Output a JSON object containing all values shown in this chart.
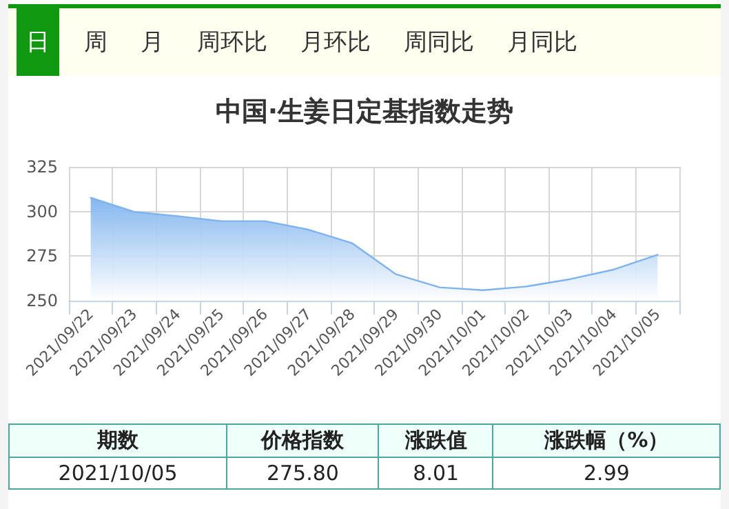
{
  "chart_data": {
    "type": "area",
    "title": "中国·生姜日定基指数走势",
    "categories": [
      "2021/09/22",
      "2021/09/23",
      "2021/09/24",
      "2021/09/25",
      "2021/09/26",
      "2021/09/27",
      "2021/09/28",
      "2021/09/29",
      "2021/09/30",
      "2021/10/01",
      "2021/10/02",
      "2021/10/03",
      "2021/10/04",
      "2021/10/05"
    ],
    "series": [
      {
        "color": "#7eb3ee",
        "values": [
          307.7,
          299.8,
          297.4,
          294.6,
          294.6,
          289.8,
          282.2,
          264.8,
          257.5,
          255.9,
          258.0,
          262.1,
          267.5,
          275.8
        ]
      }
    ],
    "ylim": [
      250,
      325
    ],
    "yticks": [
      250,
      275,
      300,
      325
    ],
    "grid": true,
    "marker": "none",
    "line_style": "solid",
    "annotations": [
      "日",
      "周",
      "月",
      "周环比",
      "月环比",
      "周同比",
      "月同比",
      "期数",
      "价格指数",
      "涨跌值",
      "涨跌幅（%）",
      "2021/10/05",
      "275.80",
      "8.01",
      "2.99"
    ]
  }
}
